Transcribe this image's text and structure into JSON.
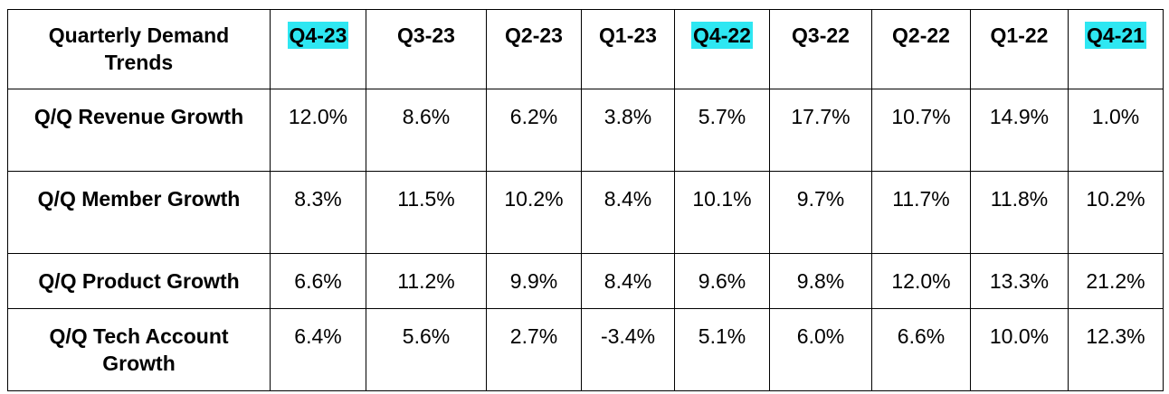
{
  "table": {
    "header": [
      "Quarterly Demand Trends",
      "Q4-23",
      "Q3-23",
      "Q2-23",
      "Q1-23",
      "Q4-22",
      "Q3-22",
      "Q2-22",
      "Q1-22",
      "Q4-21"
    ],
    "rows": [
      [
        "Q/Q Revenue Growth",
        "12.0%",
        "8.6%",
        "6.2%",
        "3.8%",
        "5.7%",
        "17.7%",
        "10.7%",
        "14.9%",
        "1.0%"
      ],
      [
        "Q/Q Member Growth",
        "8.3%",
        "11.5%",
        "10.2%",
        "8.4%",
        "10.1%",
        "9.7%",
        "11.7%",
        "11.8%",
        "10.2%"
      ],
      [
        "Q/Q Product Growth",
        "6.6%",
        "11.2%",
        "9.9%",
        "8.4%",
        "9.6%",
        "9.8%",
        "12.0%",
        "13.3%",
        "21.2%"
      ],
      [
        "Q/Q Tech Account Growth",
        "6.4%",
        "5.6%",
        "2.7%",
        "-3.4%",
        "5.1%",
        "6.0%",
        "6.6%",
        "10.0%",
        "12.3%"
      ]
    ]
  }
}
